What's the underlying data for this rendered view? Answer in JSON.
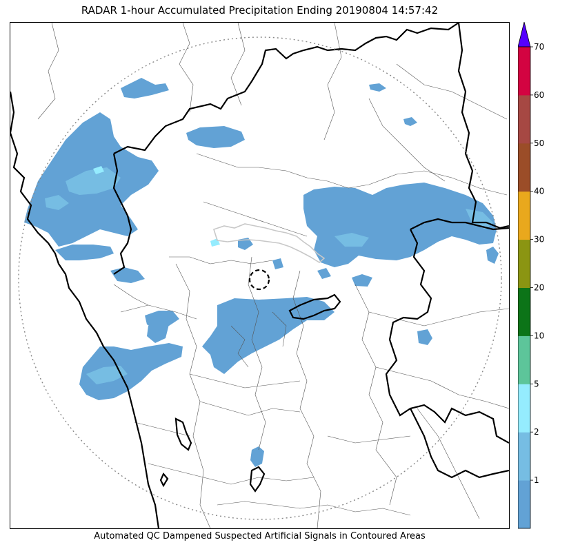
{
  "title": "RADAR 1-hour Accumulated Precipitation Ending 20190804 14:57:42",
  "caption": "Automated QC Dampened Suspected Artificial Signals in Contoured Areas",
  "colorbar": {
    "bins": [
      {
        "lower": 0,
        "upper": 1,
        "color": "#62a2d5"
      },
      {
        "lower": 1,
        "upper": 2,
        "color": "#76bde3"
      },
      {
        "lower": 2,
        "upper": 5,
        "color": "#95ecfe"
      },
      {
        "lower": 5,
        "upper": 10,
        "color": "#5dc59a"
      },
      {
        "lower": 10,
        "upper": 20,
        "color": "#0c7418"
      },
      {
        "lower": 20,
        "upper": 30,
        "color": "#8b9512"
      },
      {
        "lower": 30,
        "upper": 40,
        "color": "#e9a81d"
      },
      {
        "lower": 40,
        "upper": 50,
        "color": "#9b4d28"
      },
      {
        "lower": 50,
        "upper": 60,
        "color": "#a64843"
      },
      {
        "lower": 60,
        "upper": 70,
        "color": "#d30341"
      }
    ],
    "extend_color": "#5400fe",
    "tick_labels": [
      "1",
      "2",
      "5",
      "10",
      "20",
      "30",
      "40",
      "50",
      "60",
      "70"
    ]
  },
  "legend_colors": {
    "rain_light": "#62a2d5",
    "rain_moderate": "#76bde3",
    "rain_heavy_core": "#95ecfe",
    "state_border": "#000000",
    "district_border": "#555555",
    "range_ring": "#888888",
    "qc_contour": "#c8c8c8"
  }
}
